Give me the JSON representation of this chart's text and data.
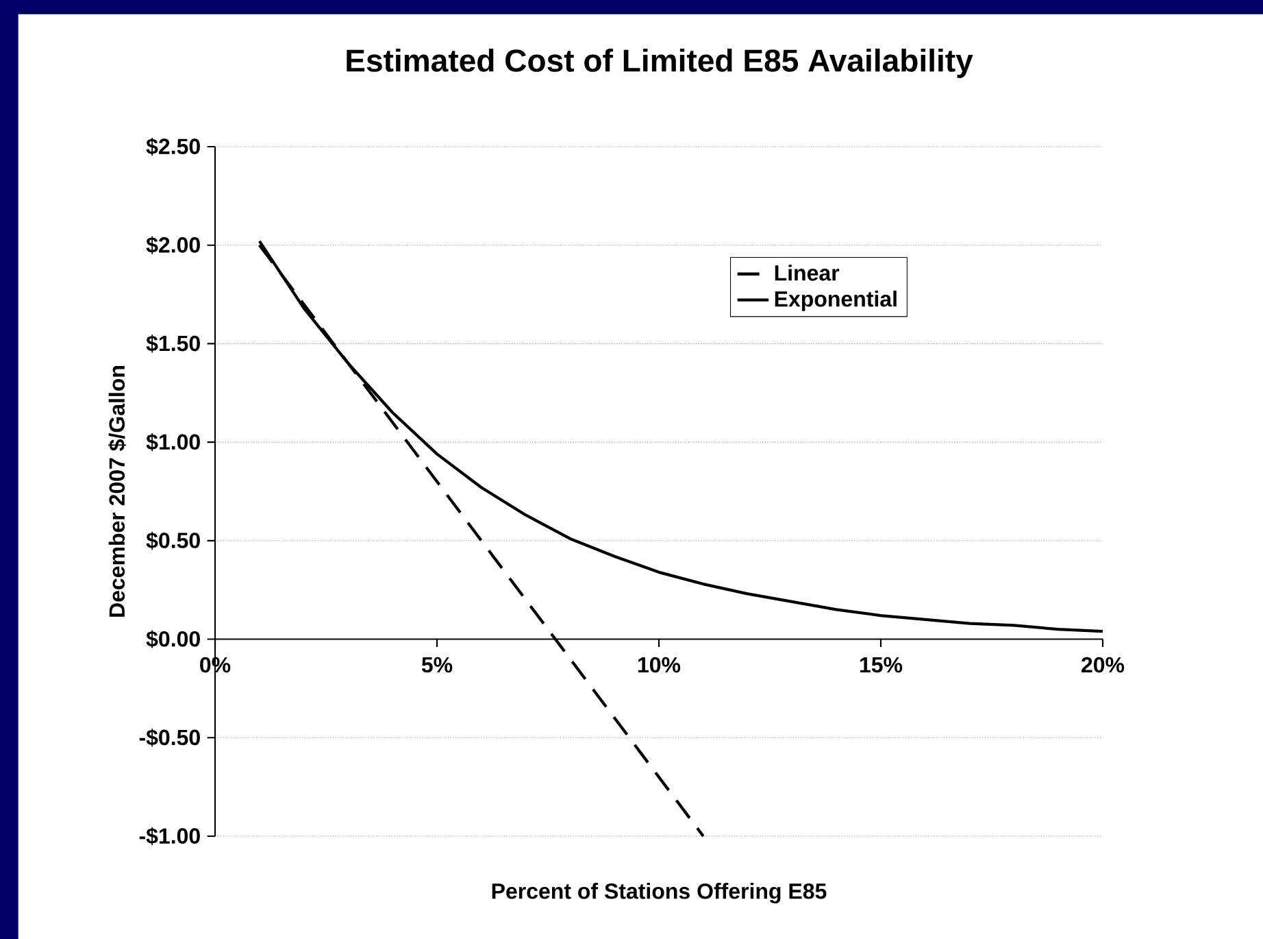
{
  "chart_data": {
    "type": "line",
    "title": "Estimated Cost of Limited E85 Availability",
    "xlabel": "Percent of Stations Offering E85",
    "ylabel": "December 2007 $/Gallon",
    "xlim": [
      0,
      20
    ],
    "ylim": [
      -1,
      2.5
    ],
    "xticks": [
      {
        "value": 0,
        "label": "0%"
      },
      {
        "value": 5,
        "label": "5%"
      },
      {
        "value": 10,
        "label": "10%"
      },
      {
        "value": 15,
        "label": "15%"
      },
      {
        "value": 20,
        "label": "20%"
      }
    ],
    "yticks": [
      {
        "value": -1,
        "label": "-$1.00"
      },
      {
        "value": -0.5,
        "label": "-$0.50"
      },
      {
        "value": 0,
        "label": "$0.00"
      },
      {
        "value": 0.5,
        "label": "$0.50"
      },
      {
        "value": 1,
        "label": "$1.00"
      },
      {
        "value": 1.5,
        "label": "$1.50"
      },
      {
        "value": 2,
        "label": "$2.00"
      },
      {
        "value": 2.5,
        "label": "$2.50"
      }
    ],
    "grid": "y",
    "legend": "top right",
    "marker": "none",
    "series": [
      {
        "name": "Linear",
        "color": "#000000",
        "line_style": "dashed",
        "x": [
          1,
          11
        ],
        "values": [
          2.0,
          -1.0
        ]
      },
      {
        "name": "Exponential",
        "color": "#000000",
        "line_style": "solid",
        "x": [
          1,
          2,
          3,
          4,
          5,
          6,
          7,
          8,
          9,
          10,
          11,
          12,
          13,
          14,
          15,
          16,
          17,
          18,
          19,
          20
        ],
        "values": [
          2.02,
          1.68,
          1.4,
          1.15,
          0.94,
          0.77,
          0.63,
          0.51,
          0.42,
          0.34,
          0.28,
          0.23,
          0.19,
          0.15,
          0.12,
          0.1,
          0.08,
          0.07,
          0.05,
          0.04
        ]
      }
    ]
  }
}
